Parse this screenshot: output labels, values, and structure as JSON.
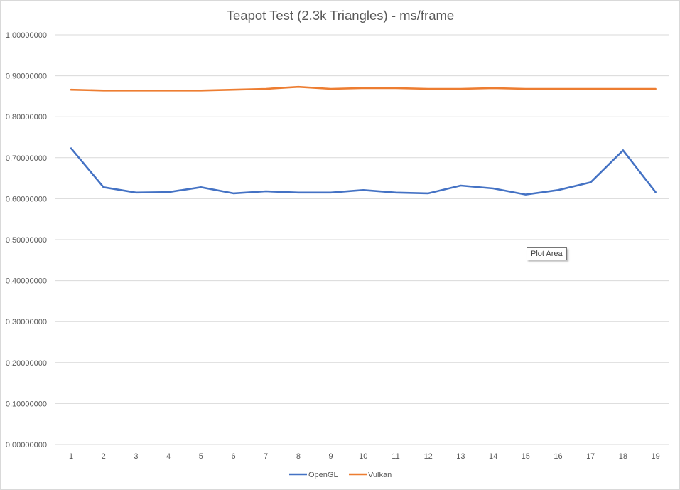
{
  "chart_data": {
    "type": "line",
    "title": "Teapot Test (2.3k Triangles) - ms/frame",
    "xlabel": "",
    "ylabel": "",
    "categories": [
      "1",
      "2",
      "3",
      "4",
      "5",
      "6",
      "7",
      "8",
      "9",
      "10",
      "11",
      "12",
      "13",
      "14",
      "15",
      "16",
      "17",
      "18",
      "19"
    ],
    "ylim": [
      0,
      1
    ],
    "ytick_labels": [
      "0,00000000",
      "0,10000000",
      "0,20000000",
      "0,30000000",
      "0,40000000",
      "0,50000000",
      "0,60000000",
      "0,70000000",
      "0,80000000",
      "0,90000000",
      "1,00000000"
    ],
    "grid": true,
    "legend_position": "bottom",
    "series": [
      {
        "name": "OpenGL",
        "color": "#4472C4",
        "values": [
          0.723,
          0.628,
          0.615,
          0.616,
          0.628,
          0.613,
          0.618,
          0.615,
          0.615,
          0.621,
          0.615,
          0.613,
          0.632,
          0.625,
          0.61,
          0.621,
          0.64,
          0.718,
          0.616
        ]
      },
      {
        "name": "Vulkan",
        "color": "#ED7D31",
        "values": [
          0.866,
          0.864,
          0.864,
          0.864,
          0.864,
          0.866,
          0.868,
          0.873,
          0.868,
          0.87,
          0.87,
          0.868,
          0.868,
          0.87,
          0.868,
          0.868,
          0.868,
          0.868,
          0.868
        ]
      }
    ]
  },
  "tooltip": {
    "label": "Plot Area"
  }
}
